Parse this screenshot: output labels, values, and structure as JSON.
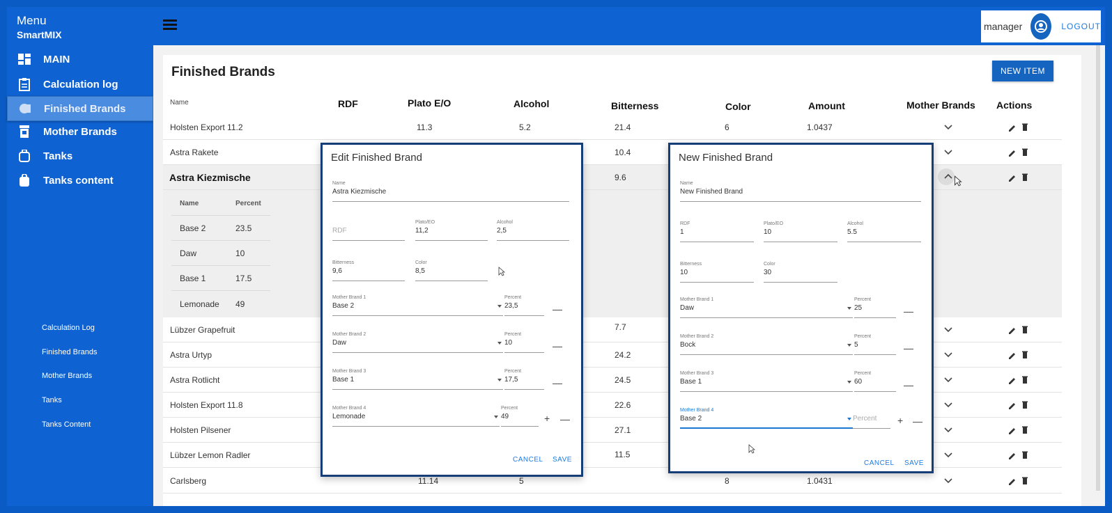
{
  "sidebar": {
    "menu_title": "Menu",
    "app_name": "SmartMIX",
    "items": [
      {
        "label": "MAIN",
        "icon": "dashboard-icon"
      },
      {
        "label": "Calculation log",
        "icon": "clipboard-icon"
      },
      {
        "label": "Finished Brands",
        "icon": "brand-icon"
      },
      {
        "label": "Mother Brands",
        "icon": "barrel-icon"
      },
      {
        "label": "Tanks",
        "icon": "tank-icon"
      },
      {
        "label": "Tanks content",
        "icon": "bag-icon"
      }
    ],
    "sub_links": [
      "Calculation Log",
      "Finished Brands",
      "Mother Brands",
      "Tanks",
      "Tanks Content"
    ]
  },
  "topbar": {
    "username": "manager",
    "logout_label": "LOGOUT"
  },
  "page": {
    "title": "Finished Brands",
    "new_item_label": "NEW ITEM"
  },
  "table": {
    "headers": {
      "name": "Name",
      "rdf": "RDF",
      "plato": "Plato E/O",
      "alcohol": "Alcohol",
      "bitterness": "Bitterness",
      "color": "Color",
      "amount": "Amount",
      "mother_brands": "Mother Brands",
      "actions": "Actions"
    },
    "rows": [
      {
        "name": "Holsten Export 11.2",
        "plato": "11.3",
        "alcohol": "5.2",
        "bitterness": "21.4",
        "color": "6",
        "amount": "1.0437"
      },
      {
        "name": "Astra Rakete",
        "bitterness": "10.4"
      },
      {
        "name": "Astra Kiezmische",
        "bitterness": "9.6"
      },
      {
        "name": "Lübzer Grapefruit",
        "bitterness": "7.7"
      },
      {
        "name": "Astra Urtyp",
        "bitterness": "24.2"
      },
      {
        "name": "Astra Rotlicht",
        "bitterness": "24.5"
      },
      {
        "name": "Holsten Export 11.8",
        "bitterness": "22.6"
      },
      {
        "name": "Holsten Pilsener",
        "bitterness": "27.1"
      },
      {
        "name": "Lübzer Lemon Radler",
        "bitterness": "11.5"
      },
      {
        "name": "Carlsberg",
        "plato": "11.14",
        "alcohol": "5",
        "color": "8",
        "amount": "1.0431"
      }
    ],
    "subtable": {
      "headers": {
        "name": "Name",
        "percent": "Percent"
      },
      "rows": [
        {
          "name": "Base 2",
          "percent": "23.5"
        },
        {
          "name": "Daw",
          "percent": "10"
        },
        {
          "name": "Base 1",
          "percent": "17.5"
        },
        {
          "name": "Lemonade",
          "percent": "49"
        }
      ]
    }
  },
  "edit_dialog": {
    "title": "Edit Finished Brand",
    "name_label": "Name",
    "name_value": "Astra Kiezmische",
    "rdf_label": "RDF",
    "plato_label": "Plato/EO",
    "plato_value": "11,2",
    "alcohol_label": "Alcohol",
    "alcohol_value": "2,5",
    "bitterness_label": "Bitterness",
    "bitterness_value": "9,6",
    "color_label": "Color",
    "color_value": "8,5",
    "mother_brands": [
      {
        "label": "Mother Brand 1",
        "value": "Base 2",
        "percent_label": "Percent",
        "percent": "23,5"
      },
      {
        "label": "Mother Brand 2",
        "value": "Daw",
        "percent_label": "Percent",
        "percent": "10"
      },
      {
        "label": "Mother Brand 3",
        "value": "Base 1",
        "percent_label": "Percent",
        "percent": "17,5"
      },
      {
        "label": "Mother Brand 4",
        "value": "Lemonade",
        "percent_label": "Percent",
        "percent": "49"
      }
    ],
    "cancel_label": "CANCEL",
    "save_label": "SAVE"
  },
  "new_dialog": {
    "title": "New Finished Brand",
    "name_label": "Name",
    "name_value": "New Finished Brand",
    "rdf_label": "RDF",
    "rdf_value": "1",
    "plato_label": "Plato/EO",
    "plato_value": "10",
    "alcohol_label": "Alcohol",
    "alcohol_value": "5.5",
    "bitterness_label": "Bitterness",
    "bitterness_value": "10",
    "color_label": "Color",
    "color_value": "30",
    "mother_brands": [
      {
        "label": "Mother Brand 1",
        "value": "Daw",
        "percent_label": "Percent",
        "percent": "25"
      },
      {
        "label": "Mother Brand 2",
        "value": "Bock",
        "percent_label": "Percent",
        "percent": "5"
      },
      {
        "label": "Mother Brand 3",
        "value": "Base 1",
        "percent_label": "Percent",
        "percent": "60"
      },
      {
        "label": "Mother Brand 4",
        "value": "Base 2",
        "percent_placeholder": "Percent"
      }
    ],
    "cancel_label": "CANCEL",
    "save_label": "SAVE"
  },
  "colors": {
    "primary": "#0e62d2",
    "accent": "#1565c0",
    "dialog_border": "#153e78"
  }
}
